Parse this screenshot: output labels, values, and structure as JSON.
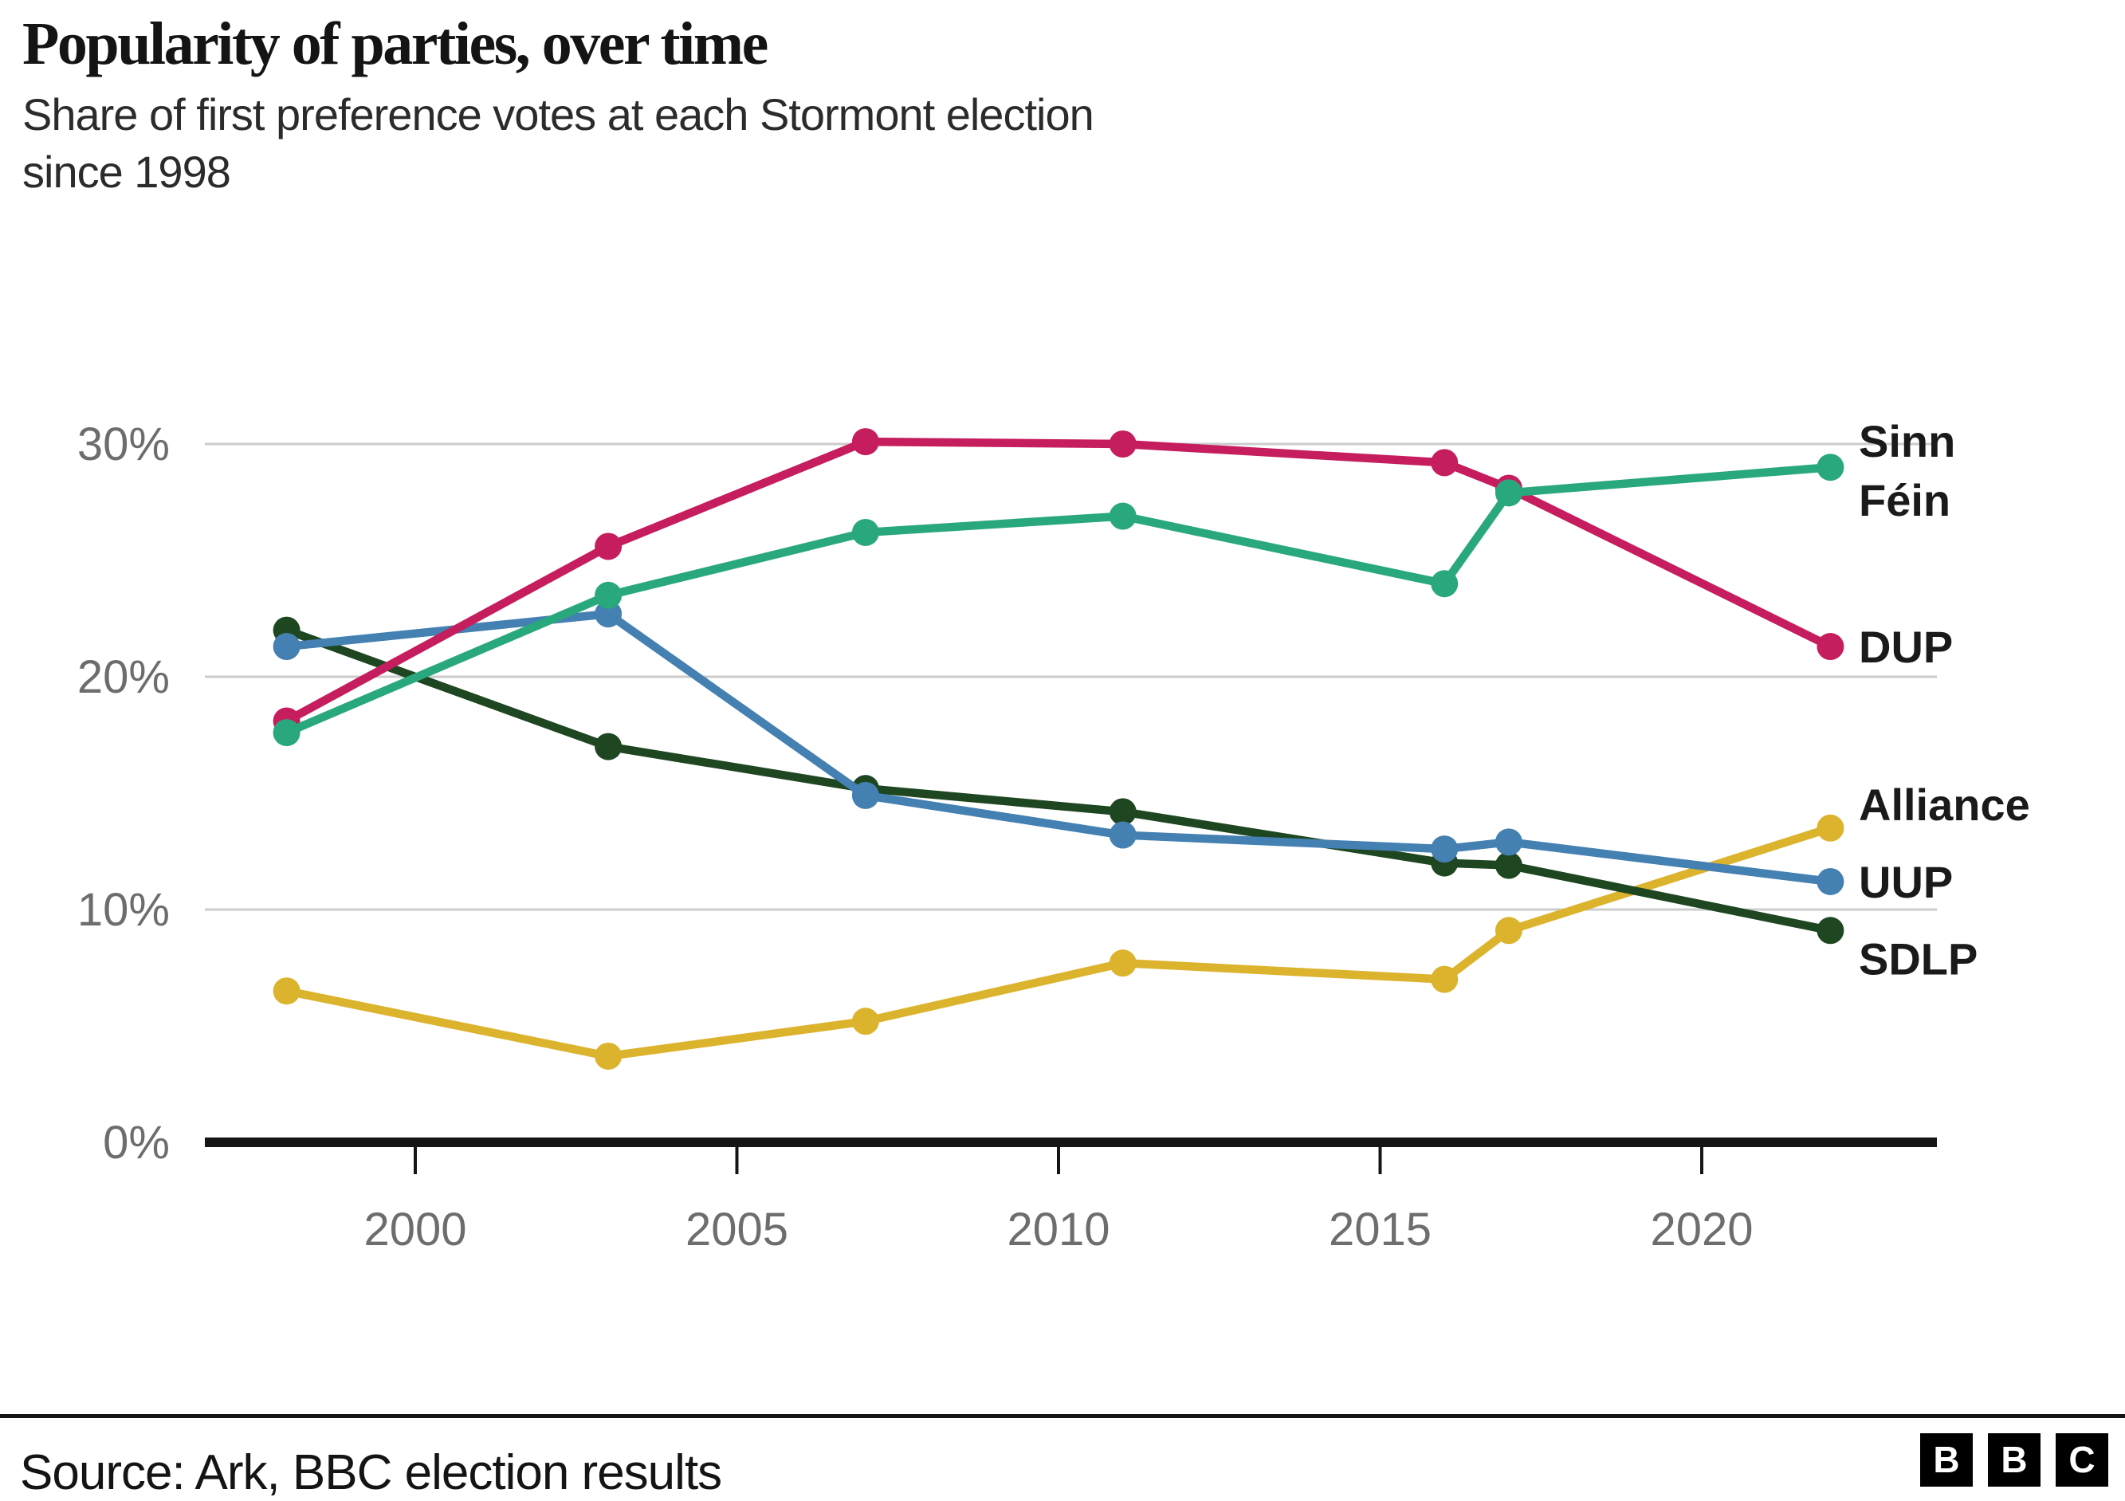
{
  "chart_data": {
    "type": "line",
    "title": "Popularity of parties, over time",
    "subtitle_lines": [
      "Share of first preference votes at each Stormont election",
      "since 1998"
    ],
    "xlabel": "",
    "ylabel": "",
    "x": [
      1998,
      2003,
      2007,
      2011,
      2016,
      2017,
      2022
    ],
    "x_ticks": [
      {
        "value": 2000,
        "label": "2000"
      },
      {
        "value": 2005,
        "label": "2005"
      },
      {
        "value": 2010,
        "label": "2010"
      },
      {
        "value": 2015,
        "label": "2015"
      },
      {
        "value": 2020,
        "label": "2020"
      }
    ],
    "y_ticks": [
      {
        "value": 0,
        "label": "0%"
      },
      {
        "value": 10,
        "label": "10%"
      },
      {
        "value": 20,
        "label": "20%"
      },
      {
        "value": 30,
        "label": "30%"
      }
    ],
    "xlim": [
      1996.7,
      2024.2
    ],
    "ylim": [
      0,
      32
    ],
    "grid": "horizontal-only",
    "legend_position": "direct-labels-right-of-last-point",
    "series": [
      {
        "id": "alliance",
        "label": "Alliance",
        "color": "#dcb32d",
        "values": [
          6.5,
          3.7,
          5.2,
          7.7,
          7.0,
          9.1,
          13.5
        ]
      },
      {
        "id": "sdlp",
        "label": "SDLP",
        "color": "#1e4721",
        "values": [
          22.0,
          17.0,
          15.2,
          14.2,
          12.0,
          11.9,
          9.1
        ]
      },
      {
        "id": "uup",
        "label": "UUP",
        "color": "#4480b1",
        "values": [
          21.3,
          22.7,
          14.9,
          13.2,
          12.6,
          12.9,
          11.2
        ]
      },
      {
        "id": "dup",
        "label": "DUP",
        "color": "#c51d5e",
        "values": [
          18.1,
          25.6,
          30.1,
          30.0,
          29.2,
          28.1,
          21.3
        ]
      },
      {
        "id": "sinn-fein",
        "label": "Sinn Féin",
        "label_lines": [
          "Sinn",
          "Féin"
        ],
        "color": "#2aa87d",
        "values": [
          17.6,
          23.5,
          26.2,
          26.9,
          24.0,
          27.9,
          29.0
        ]
      }
    ],
    "colors": {
      "grid": "#cccccc",
      "axis": "#151515",
      "tick_text": "#6d6d6d",
      "series_label_text": "#1a1a1a"
    }
  },
  "footer": {
    "source": "Source: Ark, BBC election results",
    "logo_letters": [
      "B",
      "B",
      "C"
    ]
  }
}
